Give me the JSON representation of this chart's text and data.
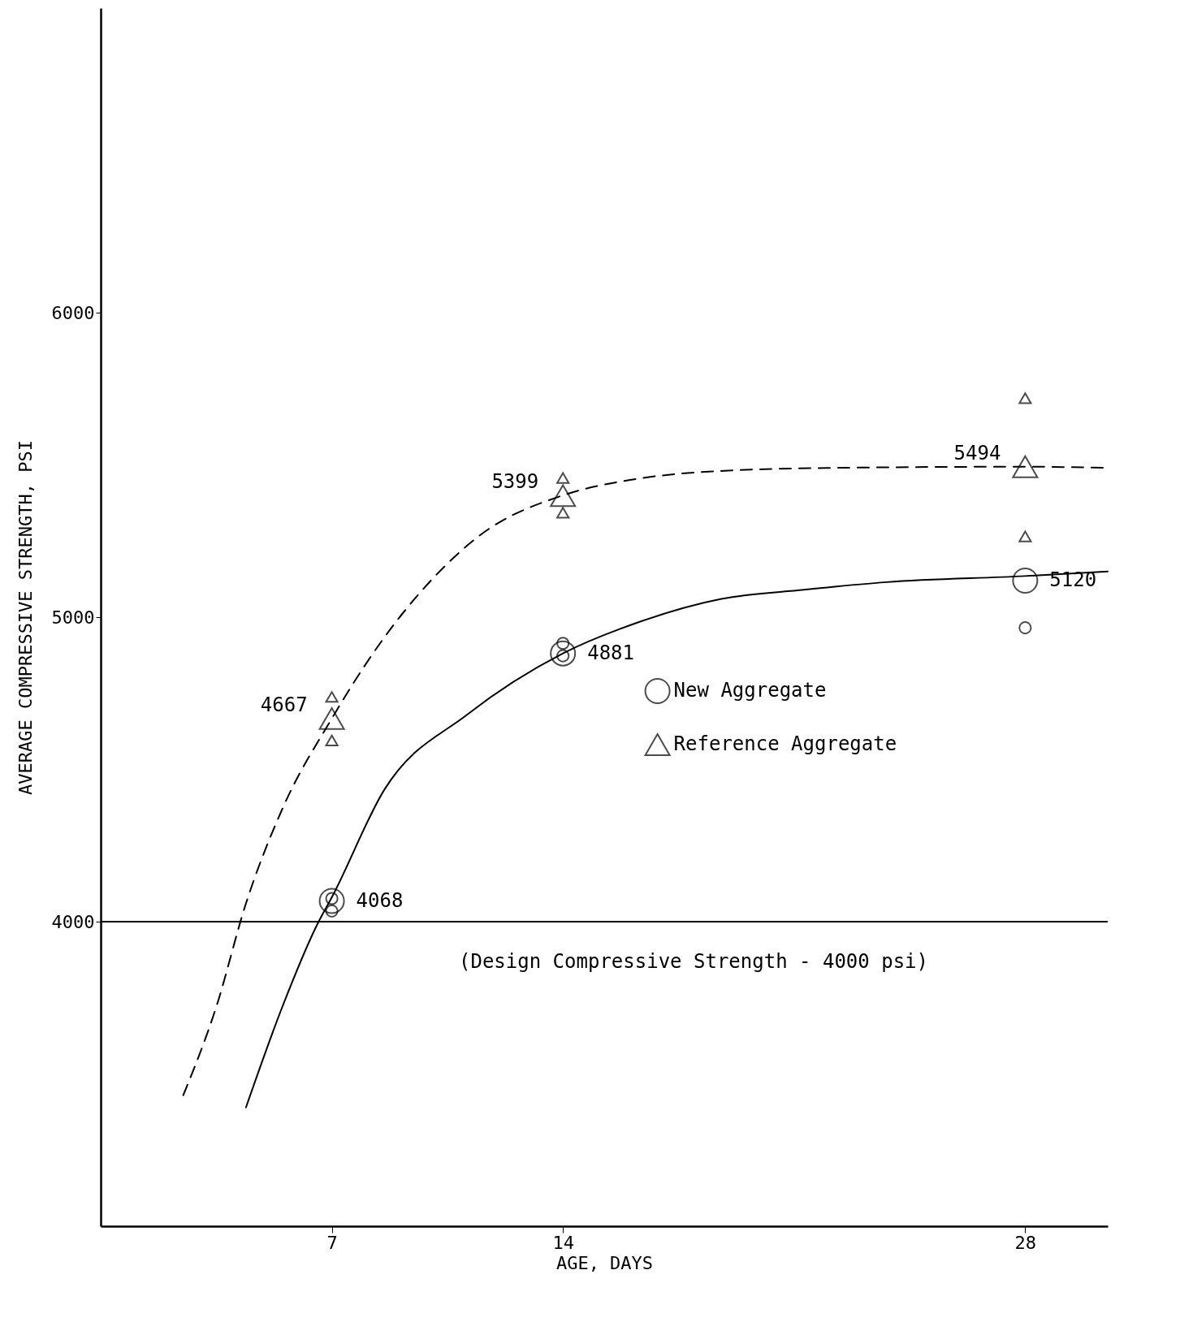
{
  "chart_data": {
    "type": "scatter",
    "xlabel": "AGE, DAYS",
    "ylabel": "AVERAGE COMPRESSIVE STRENGTH, PSI",
    "xlim": [
      0,
      30.5
    ],
    "xticks": [
      7,
      14,
      28
    ],
    "ylim": [
      3000,
      7000
    ],
    "yticks": [
      4000,
      5000,
      6000
    ],
    "grid": false,
    "legend": "right",
    "series": [
      {
        "type": "line",
        "line_style": "solid",
        "color": "#000000",
        "x": [
          4.4,
          5.5,
          6.6,
          7,
          8.6,
          11.1,
          14,
          16.2,
          18.8,
          21.3,
          23.8,
          28,
          30.5
        ],
        "values": [
          3390,
          3720,
          4000,
          4080,
          4435,
          4680,
          4881,
          4980,
          5060,
          5090,
          5115,
          5135,
          5150
        ]
      },
      {
        "type": "line",
        "line_style": "dashed",
        "color": "#000000",
        "x": [
          2.5,
          3.5,
          4.4,
          5.5,
          7,
          8.5,
          10,
          11.5,
          14,
          16,
          18,
          22,
          28,
          30.5
        ],
        "values": [
          3430,
          3720,
          4060,
          4370,
          4667,
          4920,
          5120,
          5270,
          5400,
          5450,
          5475,
          5490,
          5494,
          5490
        ]
      },
      {
        "name": "New Aggregate",
        "marker": "circle",
        "color": "#000000",
        "x": [
          7,
          14,
          28
        ],
        "values": [
          4068,
          4881,
          5120
        ],
        "value_labels": [
          "4068",
          "4881",
          "5120"
        ]
      },
      {
        "name": "Reference Aggregate",
        "marker": "triangle",
        "color": "#000000",
        "x": [
          7,
          14,
          28
        ],
        "values": [
          4667,
          5399,
          5494
        ],
        "value_labels": [
          "4667",
          "5399",
          "5494"
        ]
      },
      {
        "marker": "circle",
        "color": "#000000",
        "x": [
          7,
          7,
          14,
          14,
          28
        ],
        "values": [
          4076,
          4035,
          4914,
          4873,
          4965
        ]
      },
      {
        "marker": "triangle",
        "color": "#000000",
        "x": [
          7,
          7,
          14,
          14,
          28,
          28
        ],
        "values": [
          4738,
          4595,
          5457,
          5343,
          5719,
          5265
        ]
      }
    ],
    "ref_lines": [
      {
        "axis": "y",
        "value": 4000,
        "label": "(Design Compressive Strength - 4000 psi)",
        "color": "#000000"
      }
    ]
  }
}
